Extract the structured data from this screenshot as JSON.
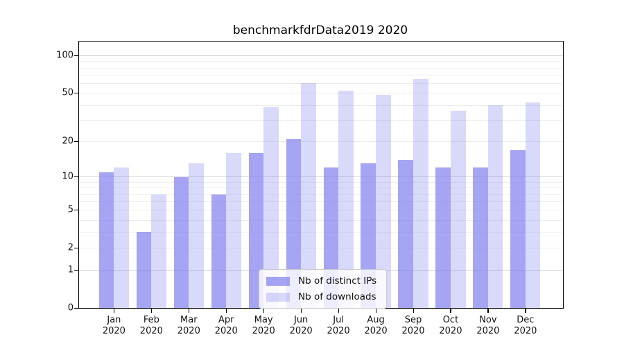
{
  "chart_data": {
    "type": "bar",
    "title": "benchmarkfdrData2019 2020",
    "categories": [
      "Jan\n2020",
      "Feb\n2020",
      "Mar\n2020",
      "Apr\n2020",
      "May\n2020",
      "Jun\n2020",
      "Jul\n2020",
      "Aug\n2020",
      "Sep\n2020",
      "Oct\n2020",
      "Nov\n2020",
      "Dec\n2020"
    ],
    "series": [
      {
        "name": "Nb of distinct IPs",
        "color": "#a8a8f2",
        "values": [
          11,
          3,
          10,
          7,
          16,
          21,
          12,
          13,
          14,
          12,
          12,
          17
        ]
      },
      {
        "name": "Nb of downloads",
        "color": "#d9d9f8",
        "values": [
          12,
          7,
          13,
          16,
          38,
          60,
          52,
          48,
          65,
          36,
          40,
          42
        ]
      }
    ],
    "yticks": [
      0,
      1,
      2,
      5,
      10,
      20,
      50,
      100
    ],
    "y_scale": "log1p",
    "ylim": [
      0,
      130
    ],
    "xlabel": "",
    "ylabel": "",
    "grid": "on",
    "legend_position": "lower center"
  }
}
